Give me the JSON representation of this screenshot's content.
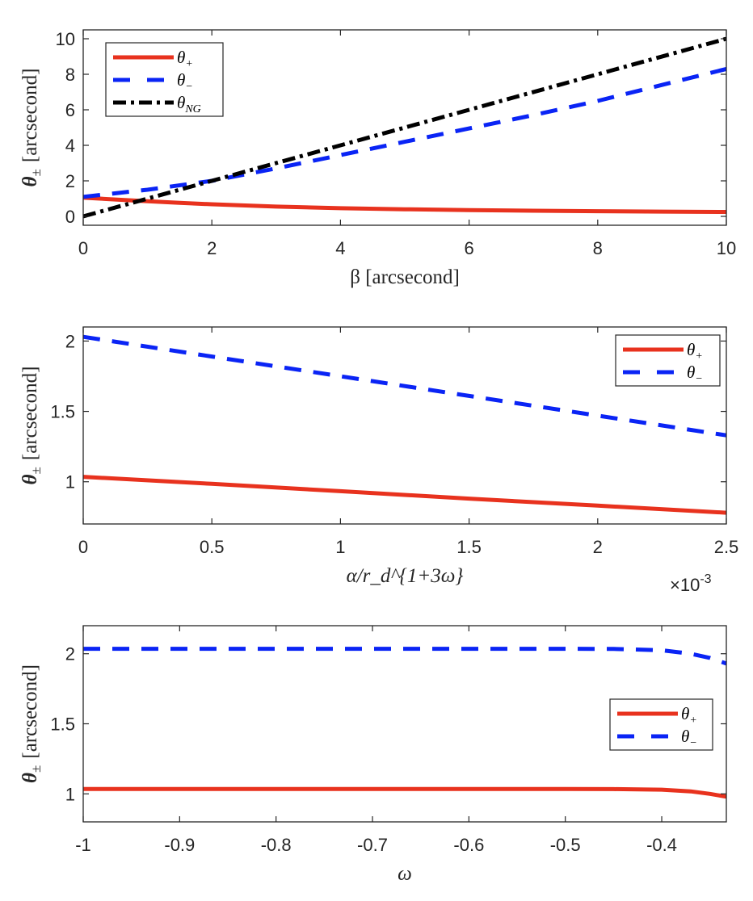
{
  "chart_data": [
    {
      "type": "line",
      "xlabel": "β [arcsecond]",
      "ylabel": "θ± [arcsecond]",
      "xlim": [
        0,
        10
      ],
      "ylim": [
        -0.5,
        10.5
      ],
      "xticks": [
        0,
        2,
        4,
        6,
        8,
        10
      ],
      "yticks": [
        0,
        2,
        4,
        6,
        8,
        10
      ],
      "grid": false,
      "legend": "top-left",
      "series": [
        {
          "name": "θ+",
          "color": "#e8321e",
          "style": "solid",
          "x": [
            0,
            0.5,
            1,
            1.5,
            2,
            3,
            4,
            5,
            6,
            7,
            8,
            9,
            10
          ],
          "y": [
            1.05,
            0.95,
            0.85,
            0.76,
            0.68,
            0.55,
            0.46,
            0.4,
            0.35,
            0.32,
            0.29,
            0.27,
            0.25
          ]
        },
        {
          "name": "θ−",
          "color": "#0a24f5",
          "style": "dashed",
          "x": [
            0,
            1,
            2,
            3,
            4,
            5,
            6,
            7,
            8,
            9,
            10
          ],
          "y": [
            1.1,
            1.5,
            2.0,
            2.7,
            3.45,
            4.2,
            4.95,
            5.7,
            6.5,
            7.4,
            8.3
          ]
        },
        {
          "name": "θNG",
          "color": "#000000",
          "style": "dashdot",
          "x": [
            0,
            10
          ],
          "y": [
            0,
            10
          ]
        }
      ]
    },
    {
      "type": "line",
      "xlabel": "α/r_d^{1+3ω}",
      "x_multiplier": {
        "base": "×10",
        "exp": "-3"
      },
      "ylabel": "θ± [arcsecond]",
      "xlim": [
        0,
        2.5
      ],
      "ylim": [
        0.7,
        2.1
      ],
      "xticks": [
        0,
        0.5,
        1,
        1.5,
        2,
        2.5
      ],
      "yticks": [
        1,
        1.5,
        2
      ],
      "grid": false,
      "legend": "top-right",
      "series": [
        {
          "name": "θ+",
          "color": "#e8321e",
          "style": "solid",
          "x": [
            0,
            0.5,
            1,
            1.5,
            2,
            2.5
          ],
          "y": [
            1.035,
            0.985,
            0.933,
            0.88,
            0.83,
            0.78
          ]
        },
        {
          "name": "θ−",
          "color": "#0a24f5",
          "style": "dashed",
          "x": [
            0,
            0.5,
            1,
            1.5,
            2,
            2.5
          ],
          "y": [
            2.03,
            1.89,
            1.75,
            1.61,
            1.47,
            1.33
          ]
        }
      ]
    },
    {
      "type": "line",
      "xlabel": "ω",
      "ylabel": "θ± [arcsecond]",
      "xlim": [
        -1,
        -0.333
      ],
      "ylim": [
        0.8,
        2.2
      ],
      "xticks": [
        -1,
        -0.9,
        -0.8,
        -0.7,
        -0.6,
        -0.5,
        -0.4
      ],
      "yticks": [
        1,
        1.5,
        2
      ],
      "grid": false,
      "legend": "right",
      "series": [
        {
          "name": "θ+",
          "color": "#e8321e",
          "style": "solid",
          "x": [
            -1,
            -0.8,
            -0.6,
            -0.5,
            -0.45,
            -0.4,
            -0.37,
            -0.35,
            -0.333
          ],
          "y": [
            1.035,
            1.035,
            1.035,
            1.035,
            1.034,
            1.03,
            1.018,
            1.0,
            0.98
          ]
        },
        {
          "name": "θ−",
          "color": "#0a24f5",
          "style": "dashed",
          "x": [
            -1,
            -0.8,
            -0.6,
            -0.5,
            -0.45,
            -0.4,
            -0.37,
            -0.35,
            -0.333
          ],
          "y": [
            2.035,
            2.035,
            2.035,
            2.035,
            2.034,
            2.025,
            2.0,
            1.97,
            1.93
          ]
        }
      ]
    }
  ]
}
